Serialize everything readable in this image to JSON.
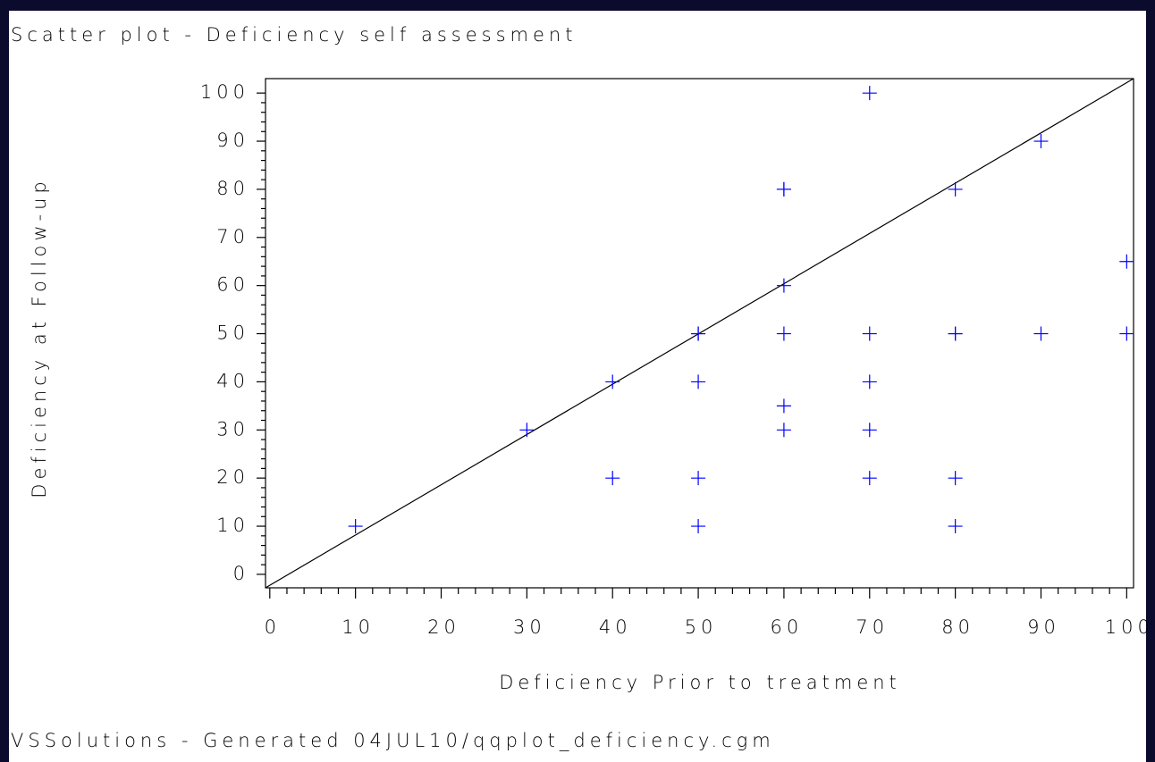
{
  "chart_data": {
    "type": "scatter",
    "title": "Scatter plot - Deficiency self assessment",
    "x_label": "Deficiency Prior to treatment",
    "y_label": "Deficiency at Follow-up",
    "footer": "VSSolutions - Generated 04JUL10/qqplot_deficiency.cgm",
    "color": "#0000ff",
    "x": [
      10,
      30,
      40,
      40,
      50,
      50,
      50,
      50,
      50,
      60,
      60,
      60,
      60,
      60,
      60,
      70,
      70,
      70,
      70,
      70,
      80,
      80,
      80,
      80,
      80,
      90,
      90,
      100,
      100
    ],
    "y": [
      10,
      30,
      40,
      20,
      50,
      50,
      40,
      20,
      10,
      80,
      80,
      60,
      50,
      35,
      30,
      100,
      50,
      40,
      30,
      20,
      80,
      50,
      50,
      20,
      10,
      90,
      50,
      65,
      50
    ],
    "xlim": [
      -0.5,
      100.8
    ],
    "ylim": [
      -2.8,
      103
    ],
    "xticks": [
      0,
      10,
      20,
      30,
      40,
      50,
      60,
      70,
      80,
      90,
      100
    ],
    "yticks": [
      0,
      10,
      20,
      30,
      40,
      50,
      60,
      70,
      80,
      90,
      100
    ]
  }
}
